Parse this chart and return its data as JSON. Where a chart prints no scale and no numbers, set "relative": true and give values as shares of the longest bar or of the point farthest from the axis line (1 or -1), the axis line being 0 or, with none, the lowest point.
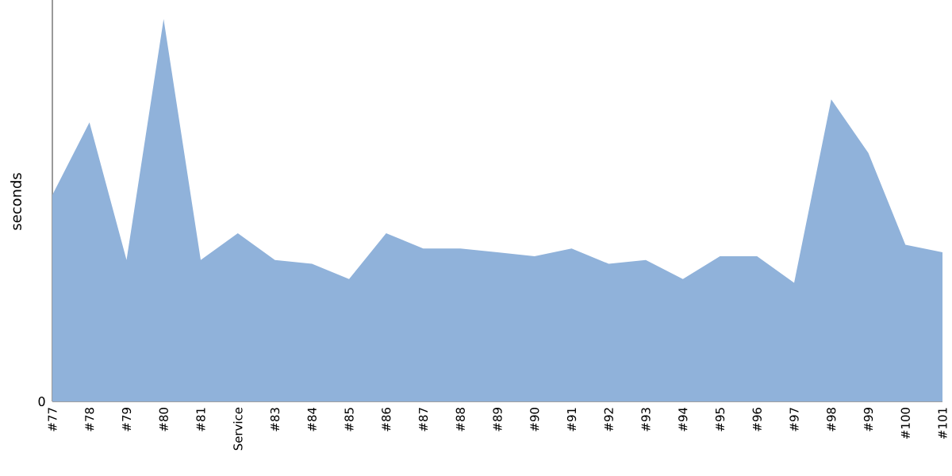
{
  "chart_data": {
    "type": "area",
    "ylabel": "seconds",
    "relative": true,
    "color": "#90b2da",
    "categories": [
      "#77",
      "#78",
      "#79",
      "#80",
      "#81",
      "Service",
      "#83",
      "#84",
      "#85",
      "#86",
      "#87",
      "#88",
      "#89",
      "#90",
      "#91",
      "#92",
      "#93",
      "#94",
      "#95",
      "#96",
      "#97",
      "#98",
      "#99",
      "#100",
      "#101"
    ],
    "values": [
      0.54,
      0.73,
      0.37,
      1.0,
      0.37,
      0.44,
      0.37,
      0.36,
      0.32,
      0.44,
      0.4,
      0.4,
      0.39,
      0.38,
      0.4,
      0.36,
      0.37,
      0.32,
      0.38,
      0.38,
      0.31,
      0.79,
      0.65,
      0.41,
      0.39
    ],
    "annotations": [
      "0"
    ],
    "grid": false
  }
}
